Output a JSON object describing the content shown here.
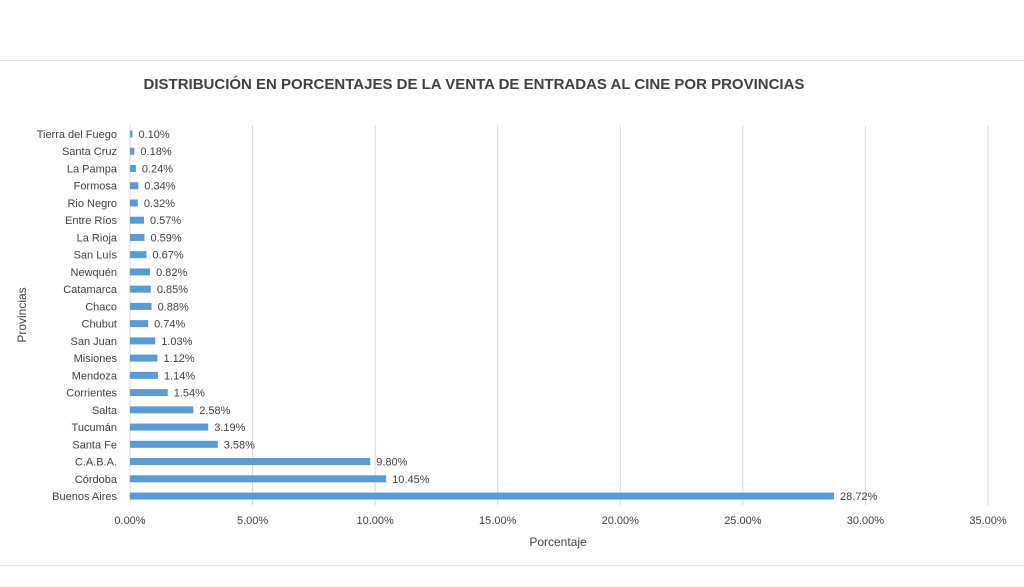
{
  "chart_data": {
    "type": "bar",
    "orientation": "horizontal",
    "title": "DISTRIBUCIÓN EN PORCENTAJES DE LA VENTA DE ENTRADAS AL CINE POR PROVINCIAS",
    "xlabel": "Porcentaje",
    "ylabel": "Provincias",
    "xlim": [
      0,
      35
    ],
    "x_ticks": [
      "0.00%",
      "5.00%",
      "10.00%",
      "15.00%",
      "20.00%",
      "25.00%",
      "30.00%",
      "35.00%"
    ],
    "grid": "vertical",
    "legend": "none",
    "bar_color": "#5b9bd5",
    "categories": [
      "Tierra del Fuego",
      "Santa Cruz",
      "La Pampa",
      "Formosa",
      "Rio Negro",
      "Entre Ríos",
      "La Rioja",
      "San Luís",
      "Newquén",
      "Catamarca",
      "Chaco",
      "Chubut",
      "San Juan",
      "Misiones",
      "Mendoza",
      "Corrientes",
      "Salta",
      "Tucumán",
      "Santa Fe",
      "C.A.B.A.",
      "Córdoba",
      "Buenos Aires"
    ],
    "values": [
      0.1,
      0.18,
      0.24,
      0.34,
      0.32,
      0.57,
      0.59,
      0.67,
      0.82,
      0.85,
      0.88,
      0.74,
      1.03,
      1.12,
      1.14,
      1.54,
      2.58,
      3.19,
      3.58,
      9.8,
      10.45,
      28.72
    ],
    "data_labels": [
      "0.10%",
      "0.18%",
      "0.24%",
      "0.34%",
      "0.32%",
      "0.57%",
      "0.59%",
      "0.67%",
      "0.82%",
      "0.85%",
      "0.88%",
      "0.74%",
      "1.03%",
      "1.12%",
      "1.14%",
      "1.54%",
      "2.58%",
      "3.19%",
      "3.58%",
      "9.80%",
      "10.45%",
      "28.72%"
    ]
  }
}
